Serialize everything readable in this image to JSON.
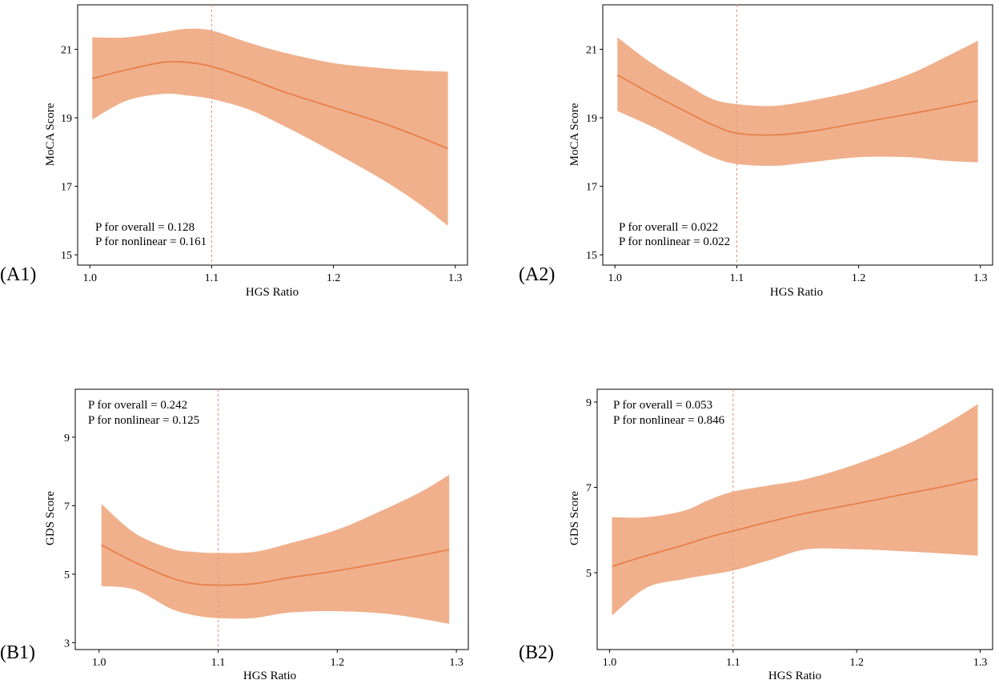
{
  "colors": {
    "band": "#f0b08c",
    "line": "#e8804a",
    "refline": "#e89a8a",
    "frame": "#000000"
  },
  "chart_data": [
    {
      "panel": "(A1)",
      "type": "line",
      "xlabel": "HGS Ratio",
      "ylabel": "MoCA Score",
      "xlim": [
        0.99,
        1.31
      ],
      "ylim": [
        14.7,
        22.3
      ],
      "xticks": [
        "1.0",
        "1.1",
        "1.2",
        "1.3"
      ],
      "yticks": [
        "15",
        "17",
        "19",
        "21"
      ],
      "reference_x": 1.1,
      "annotation": [
        "P for overall = 0.128",
        "P for nonlinear = 0.161"
      ],
      "annotation_position": "bottom-left",
      "series": [
        {
          "name": "fit",
          "x": [
            1.002,
            1.03,
            1.06,
            1.08,
            1.1,
            1.13,
            1.16,
            1.2,
            1.24,
            1.27,
            1.294
          ],
          "y": [
            20.15,
            20.4,
            20.62,
            20.62,
            20.5,
            20.15,
            19.75,
            19.3,
            18.85,
            18.45,
            18.1
          ],
          "lower": [
            18.95,
            19.5,
            19.7,
            19.65,
            19.55,
            19.25,
            18.75,
            18.0,
            17.2,
            16.5,
            15.85
          ],
          "upper": [
            21.35,
            21.35,
            21.5,
            21.6,
            21.55,
            21.2,
            20.9,
            20.6,
            20.45,
            20.38,
            20.35
          ]
        }
      ]
    },
    {
      "panel": "(A2)",
      "type": "line",
      "xlabel": "HGS Ratio",
      "ylabel": "MoCA Score",
      "xlim": [
        0.99,
        1.31
      ],
      "ylim": [
        14.7,
        22.3
      ],
      "xticks": [
        "1.0",
        "1.1",
        "1.2",
        "1.3"
      ],
      "yticks": [
        "15",
        "17",
        "19",
        "21"
      ],
      "reference_x": 1.1,
      "annotation": [
        "P for overall = 0.022",
        "P for nonlinear = 0.022"
      ],
      "annotation_position": "bottom-left",
      "series": [
        {
          "name": "fit",
          "x": [
            1.002,
            1.03,
            1.06,
            1.08,
            1.1,
            1.13,
            1.16,
            1.2,
            1.24,
            1.27,
            1.298
          ],
          "y": [
            20.25,
            19.7,
            19.15,
            18.8,
            18.55,
            18.5,
            18.6,
            18.85,
            19.1,
            19.3,
            19.5
          ],
          "lower": [
            19.2,
            18.75,
            18.2,
            17.85,
            17.65,
            17.6,
            17.7,
            17.85,
            17.85,
            17.75,
            17.7
          ],
          "upper": [
            21.35,
            20.6,
            19.95,
            19.55,
            19.4,
            19.35,
            19.5,
            19.8,
            20.25,
            20.75,
            21.25
          ]
        }
      ]
    },
    {
      "panel": "(B1)",
      "type": "line",
      "xlabel": "HGS Ratio",
      "ylabel": "GDS Score",
      "xlim": [
        0.98,
        1.31
      ],
      "ylim": [
        2.8,
        10.4
      ],
      "xticks": [
        "1.0",
        "1.1",
        "1.2",
        "1.3"
      ],
      "yticks": [
        "3",
        "5",
        "7",
        "9"
      ],
      "reference_x": 1.1,
      "annotation": [
        "P for overall = 0.242",
        "P for nonlinear = 0.125"
      ],
      "annotation_position": "top-left",
      "series": [
        {
          "name": "fit",
          "x": [
            1.002,
            1.03,
            1.06,
            1.08,
            1.1,
            1.13,
            1.16,
            1.2,
            1.24,
            1.27,
            1.294
          ],
          "y": [
            5.85,
            5.35,
            4.9,
            4.72,
            4.68,
            4.72,
            4.9,
            5.1,
            5.35,
            5.55,
            5.72
          ],
          "lower": [
            4.65,
            4.55,
            4.0,
            3.8,
            3.72,
            3.72,
            3.88,
            3.92,
            3.85,
            3.7,
            3.55
          ],
          "upper": [
            7.05,
            6.2,
            5.75,
            5.65,
            5.62,
            5.65,
            5.9,
            6.3,
            6.9,
            7.4,
            7.9
          ]
        }
      ]
    },
    {
      "panel": "(B2)",
      "type": "line",
      "xlabel": "HGS Ratio",
      "ylabel": "GDS Score",
      "xlim": [
        0.99,
        1.31
      ],
      "ylim": [
        3.2,
        9.3
      ],
      "xticks": [
        "1.0",
        "1.1",
        "1.2",
        "1.3"
      ],
      "yticks": [
        "5",
        "7",
        "9"
      ],
      "reference_x": 1.1,
      "annotation": [
        "P for overall = 0.053",
        "P for nonlinear = 0.846"
      ],
      "annotation_position": "top-left",
      "series": [
        {
          "name": "fit",
          "x": [
            1.002,
            1.03,
            1.06,
            1.08,
            1.1,
            1.13,
            1.16,
            1.2,
            1.24,
            1.27,
            1.298
          ],
          "y": [
            5.15,
            5.4,
            5.65,
            5.83,
            5.98,
            6.2,
            6.4,
            6.62,
            6.85,
            7.02,
            7.2
          ],
          "lower": [
            4.0,
            4.65,
            4.85,
            4.95,
            5.05,
            5.3,
            5.55,
            5.55,
            5.5,
            5.45,
            5.4
          ],
          "upper": [
            6.3,
            6.3,
            6.45,
            6.7,
            6.9,
            7.05,
            7.2,
            7.55,
            8.0,
            8.45,
            8.95
          ]
        }
      ]
    }
  ]
}
